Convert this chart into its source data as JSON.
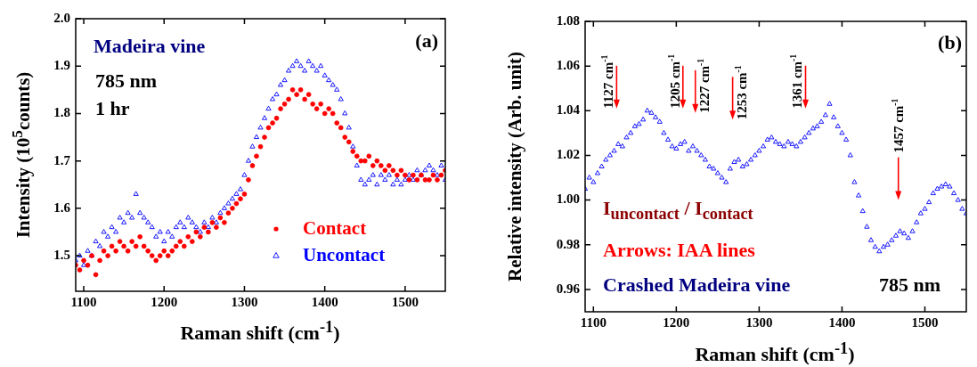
{
  "chart_data": [
    {
      "type": "scatter",
      "xlabel": "Raman shift (cm$^{-1}$)",
      "ylabel": "Intensity (10$^{5}$counts)",
      "xlim": [
        1090,
        1550
      ],
      "ylim": [
        1.425,
        2.0
      ],
      "xticks": [
        1100,
        1200,
        1300,
        1400,
        1500
      ],
      "yticks": [
        1.5,
        1.6,
        1.7,
        1.8,
        1.9,
        {
          "value": 2,
          "label": "2.0"
        }
      ],
      "grid": false,
      "legend": "bottom right",
      "annotations": [
        "(a)",
        "Madeira vine",
        "785 nm",
        "1 hr"
      ],
      "x": [
        1090,
        1095,
        1100,
        1105,
        1110,
        1115,
        1120,
        1125,
        1130,
        1135,
        1140,
        1145,
        1150,
        1155,
        1160,
        1165,
        1170,
        1175,
        1180,
        1185,
        1190,
        1195,
        1200,
        1205,
        1210,
        1215,
        1220,
        1225,
        1230,
        1235,
        1240,
        1245,
        1250,
        1255,
        1260,
        1265,
        1270,
        1275,
        1280,
        1285,
        1290,
        1295,
        1300,
        1305,
        1310,
        1315,
        1320,
        1325,
        1330,
        1335,
        1340,
        1345,
        1350,
        1355,
        1360,
        1365,
        1370,
        1375,
        1380,
        1385,
        1390,
        1395,
        1400,
        1405,
        1410,
        1415,
        1420,
        1425,
        1430,
        1435,
        1440,
        1445,
        1450,
        1455,
        1460,
        1465,
        1470,
        1475,
        1480,
        1485,
        1490,
        1495,
        1500,
        1505,
        1510,
        1515,
        1520,
        1525,
        1530,
        1535,
        1540,
        1545,
        1550
      ],
      "series": [
        {
          "name": "Contact",
          "color": "#ff0000",
          "marker": "circle",
          "values": [
            1.48,
            1.47,
            1.49,
            1.48,
            1.5,
            1.46,
            1.49,
            1.51,
            1.5,
            1.52,
            1.51,
            1.53,
            1.52,
            1.51,
            1.53,
            1.52,
            1.54,
            1.52,
            1.51,
            1.5,
            1.49,
            1.5,
            1.51,
            1.5,
            1.51,
            1.52,
            1.53,
            1.52,
            1.54,
            1.53,
            1.55,
            1.54,
            1.56,
            1.55,
            1.57,
            1.56,
            1.58,
            1.57,
            1.59,
            1.6,
            1.61,
            1.62,
            1.63,
            1.66,
            1.69,
            1.71,
            1.73,
            1.75,
            1.77,
            1.78,
            1.79,
            1.81,
            1.82,
            1.83,
            1.85,
            1.84,
            1.85,
            1.83,
            1.84,
            1.82,
            1.81,
            1.82,
            1.8,
            1.81,
            1.8,
            1.78,
            1.77,
            1.75,
            1.74,
            1.72,
            1.71,
            1.7,
            1.7,
            1.71,
            1.69,
            1.7,
            1.69,
            1.68,
            1.69,
            1.68,
            1.67,
            1.68,
            1.67,
            1.66,
            1.67,
            1.66,
            1.67,
            1.66,
            1.66,
            1.67,
            1.66,
            1.67,
            1.68
          ]
        },
        {
          "name": "Uncontact",
          "color": "#0000ff",
          "marker": "triangle",
          "values": [
            1.49,
            1.5,
            1.48,
            1.51,
            1.5,
            1.53,
            1.52,
            1.55,
            1.54,
            1.56,
            1.55,
            1.58,
            1.57,
            1.59,
            1.58,
            1.63,
            1.59,
            1.58,
            1.57,
            1.56,
            1.54,
            1.55,
            1.53,
            1.55,
            1.54,
            1.56,
            1.57,
            1.56,
            1.58,
            1.57,
            1.56,
            1.55,
            1.57,
            1.56,
            1.58,
            1.57,
            1.59,
            1.6,
            1.61,
            1.62,
            1.63,
            1.64,
            1.67,
            1.7,
            1.73,
            1.75,
            1.77,
            1.79,
            1.81,
            1.83,
            1.84,
            1.86,
            1.87,
            1.89,
            1.9,
            1.91,
            1.9,
            1.89,
            1.91,
            1.9,
            1.89,
            1.9,
            1.88,
            1.87,
            1.86,
            1.85,
            1.83,
            1.8,
            1.77,
            1.73,
            1.69,
            1.66,
            1.65,
            1.66,
            1.67,
            1.65,
            1.67,
            1.66,
            1.67,
            1.65,
            1.66,
            1.65,
            1.66,
            1.67,
            1.66,
            1.68,
            1.67,
            1.68,
            1.69,
            1.68,
            1.67,
            1.69,
            1.66
          ]
        }
      ]
    },
    {
      "type": "scatter",
      "xlabel": "Raman shift (cm$^{-1}$)",
      "ylabel": "Relative intensity (Arb. unit)",
      "xlim": [
        1090,
        1550
      ],
      "ylim": [
        0.95,
        1.08
      ],
      "xticks": [
        1100,
        1200,
        1300,
        1400,
        1500
      ],
      "yticks": [
        0.96,
        0.98,
        {
          "value": 1,
          "label": "1.00"
        },
        1.02,
        1.04,
        1.06,
        1.08
      ],
      "grid": false,
      "annotations": [
        "(b)",
        "I$_{uncontact}$ / I$_{contact}$",
        "Arrows:  IAA lines",
        "Crashed Madeira vine",
        "785 nm",
        "1127 cm$^{-1}$",
        "1205 cm$^{-1}$",
        "1227 cm$^{-1}$",
        "1253 cm$^{-1}$",
        "1361 cm$^{-1}$",
        "1457 cm$^{-1}$"
      ],
      "x": [
        1090,
        1095,
        1100,
        1105,
        1110,
        1115,
        1120,
        1125,
        1130,
        1135,
        1140,
        1145,
        1150,
        1155,
        1160,
        1165,
        1170,
        1175,
        1180,
        1185,
        1190,
        1195,
        1200,
        1205,
        1210,
        1215,
        1220,
        1225,
        1230,
        1235,
        1240,
        1245,
        1250,
        1255,
        1260,
        1265,
        1270,
        1275,
        1280,
        1285,
        1290,
        1295,
        1300,
        1305,
        1310,
        1315,
        1320,
        1325,
        1330,
        1335,
        1340,
        1345,
        1350,
        1355,
        1360,
        1365,
        1370,
        1375,
        1380,
        1385,
        1390,
        1395,
        1400,
        1405,
        1410,
        1415,
        1420,
        1425,
        1430,
        1435,
        1440,
        1445,
        1450,
        1455,
        1460,
        1465,
        1470,
        1475,
        1480,
        1485,
        1490,
        1495,
        1500,
        1505,
        1510,
        1515,
        1520,
        1525,
        1530,
        1535,
        1540,
        1545,
        1550
      ],
      "series": [
        {
          "color": "#0000ff",
          "marker": "triangle",
          "values": [
            1.005,
            1.01,
            1.008,
            1.012,
            1.015,
            1.018,
            1.02,
            1.022,
            1.025,
            1.024,
            1.028,
            1.03,
            1.033,
            1.034,
            1.036,
            1.04,
            1.039,
            1.037,
            1.035,
            1.03,
            1.027,
            1.024,
            1.023,
            1.025,
            1.026,
            1.022,
            1.024,
            1.022,
            1.02,
            1.018,
            1.015,
            1.014,
            1.012,
            1.01,
            1.008,
            1.014,
            1.017,
            1.018,
            1.015,
            1.016,
            1.018,
            1.02,
            1.022,
            1.024,
            1.027,
            1.028,
            1.026,
            1.025,
            1.024,
            1.026,
            1.025,
            1.024,
            1.026,
            1.028,
            1.03,
            1.032,
            1.033,
            1.035,
            1.038,
            1.043,
            1.037,
            1.033,
            1.03,
            1.027,
            1.02,
            1.008,
            1.002,
            0.995,
            0.988,
            0.982,
            0.979,
            0.977,
            0.979,
            0.98,
            0.982,
            0.984,
            0.986,
            0.985,
            0.983,
            0.986,
            0.99,
            0.994,
            0.996,
            0.999,
            1.003,
            1.005,
            1.006,
            1.007,
            1.006,
            1.003,
            1.0,
            0.996,
            0.994
          ]
        }
      ]
    }
  ]
}
